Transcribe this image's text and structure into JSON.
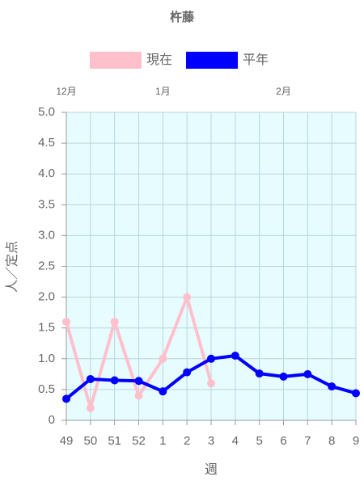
{
  "chart_data": {
    "type": "line",
    "title": "杵藤",
    "categories": [
      "49",
      "50",
      "51",
      "52",
      "1",
      "2",
      "3",
      "4",
      "5",
      "6",
      "7",
      "8",
      "9"
    ],
    "month_labels": [
      "12月",
      null,
      null,
      null,
      "1月",
      null,
      null,
      null,
      null,
      "2月",
      null,
      null,
      null
    ],
    "series": [
      {
        "name": "現在",
        "color": "#ffc0cb",
        "values": [
          1.6,
          0.2,
          1.6,
          0.4,
          1.0,
          2.0,
          0.6,
          null,
          null,
          null,
          null,
          null,
          null
        ]
      },
      {
        "name": "平年",
        "color": "#0000ff",
        "values": [
          0.35,
          0.67,
          0.65,
          0.64,
          0.47,
          0.78,
          1.0,
          1.05,
          0.76,
          0.71,
          0.75,
          0.55,
          0.44
        ]
      }
    ],
    "ylim": [
      0,
      5
    ],
    "yticks": [
      0,
      0.5,
      {
        "value": 1,
        "label": "1.0"
      },
      1.5,
      {
        "value": 2,
        "label": "2.0"
      },
      2.5,
      {
        "value": 3,
        "label": "3.0"
      },
      3.5,
      {
        "value": 4,
        "label": "4.0"
      },
      4.5,
      {
        "value": 5,
        "label": "5.0"
      }
    ],
    "ylabel": "人／定点",
    "xlabel": "週",
    "grid": true,
    "background": "#e6fcff"
  }
}
